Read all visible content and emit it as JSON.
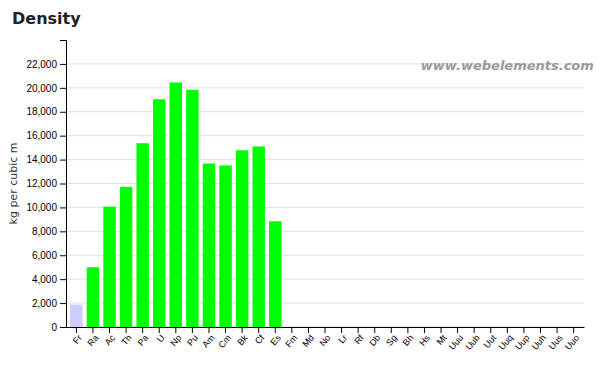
{
  "chart_data": {
    "type": "bar",
    "title": "Density",
    "y_label": "kg per cubic m",
    "annotations": [
      "www.webelements.com"
    ],
    "categories": [
      "Fr",
      "Ra",
      "Ac",
      "Th",
      "Pa",
      "U",
      "Np",
      "Pu",
      "Am",
      "Cm",
      "Bk",
      "Cf",
      "Es",
      "Fm",
      "Md",
      "No",
      "Lr",
      "Rf",
      "Db",
      "Sg",
      "Bh",
      "Hs",
      "Mt",
      "Uuu",
      "Uub",
      "Uut",
      "Uuq",
      "Uup",
      "Uuh",
      "Uus",
      "Uuo"
    ],
    "values": [
      1870,
      5000,
      10070,
      11720,
      15370,
      19050,
      20450,
      19840,
      13670,
      13510,
      14780,
      15100,
      8840,
      0,
      0,
      0,
      0,
      0,
      0,
      0,
      0,
      0,
      0,
      0,
      0,
      0,
      0,
      0,
      0,
      0,
      0
    ],
    "colors": [
      "#ccccff",
      "#00ff00",
      "#00ff00",
      "#00ff00",
      "#00ff00",
      "#00ff00",
      "#00ff00",
      "#00ff00",
      "#00ff00",
      "#00ff00",
      "#00ff00",
      "#00ff00",
      "#00ff00",
      "#00ff00",
      "#00ff00",
      "#00ff00",
      "#00ff00",
      "#00ff00",
      "#00ff00",
      "#00ff00",
      "#00ff00",
      "#00ff00",
      "#00ff00",
      "#00ff00",
      "#00ff00",
      "#00ff00",
      "#00ff00",
      "#00ff00",
      "#00ff00",
      "#00ff00",
      "#00ff00"
    ],
    "ylim": [
      0,
      24000
    ],
    "yticks": [
      0,
      {
        "value": 2000,
        "label": "2,000"
      },
      {
        "value": 4000,
        "label": "4,000"
      },
      {
        "value": 6000,
        "label": "6,000"
      },
      {
        "value": 8000,
        "label": "8,000"
      },
      {
        "value": 10000,
        "label": "10,000"
      },
      {
        "value": 12000,
        "label": "12,000"
      },
      {
        "value": 14000,
        "label": "14,000"
      },
      {
        "value": 16000,
        "label": "16,000"
      },
      {
        "value": 18000,
        "label": "18,000"
      },
      {
        "value": 20000,
        "label": "20,000"
      },
      {
        "value": 22000,
        "label": "22,000"
      }
    ],
    "grid": true
  }
}
